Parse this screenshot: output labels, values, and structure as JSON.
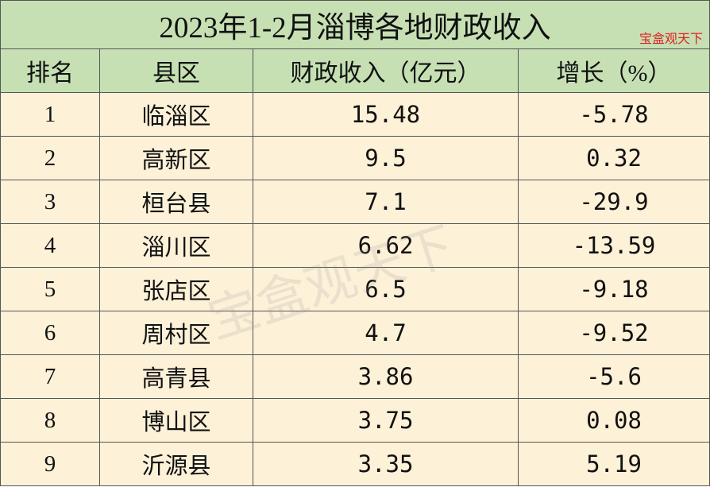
{
  "header": {
    "title": "2023年1-2月淄博各地财政收入",
    "tag": "宝盒观天下"
  },
  "watermark": "宝盒观天下",
  "table": {
    "columns": [
      "排名",
      "县区",
      "财政收入（亿元）",
      "增长（%）"
    ],
    "rows": [
      [
        "1",
        "临淄区",
        "15.48",
        "-5.78"
      ],
      [
        "2",
        "高新区",
        "9.5",
        "0.32"
      ],
      [
        "3",
        "桓台县",
        "7.1",
        "-29.9"
      ],
      [
        "4",
        "淄川区",
        "6.62",
        "-13.59"
      ],
      [
        "5",
        "张店区",
        "6.5",
        "-9.18"
      ],
      [
        "6",
        "周村区",
        "4.7",
        "-9.52"
      ],
      [
        "7",
        "高青县",
        "3.86",
        "-5.6"
      ],
      [
        "8",
        "博山区",
        "3.75",
        "0.08"
      ],
      [
        "9",
        "沂源县",
        "3.35",
        "5.19"
      ]
    ]
  }
}
